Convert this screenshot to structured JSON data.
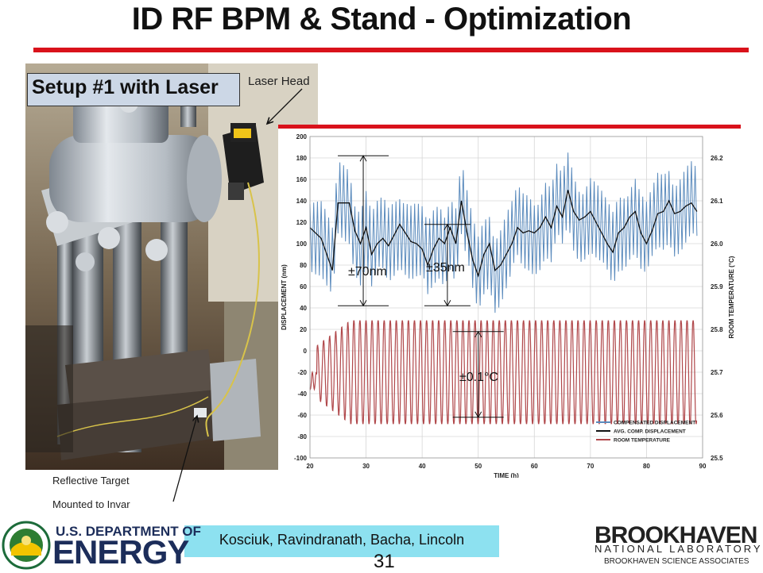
{
  "slide": {
    "title": "ID RF BPM & Stand - Optimization",
    "setup_label": "Setup #1 with Laser",
    "laser_head_label": "Laser Head",
    "target_label_1": "Reflective Target",
    "target_label_2": "Mounted to Invar",
    "authors": "Kosciuk, Ravindranath, Bacha, Lincoln",
    "page_number": "31",
    "accent_color": "#d9121b"
  },
  "footer": {
    "doe_line1": "U.S. DEPARTMENT OF",
    "doe_line2": "ENERGY",
    "bnl_line1": "BROOKHAVEN",
    "bnl_line2": "NATIONAL LABORATORY",
    "bnl_line3": "BROOKHAVEN SCIENCE ASSOCIATES"
  },
  "chart_data": {
    "type": "line",
    "xlabel": "TIME (h)",
    "ylabel": "DISPLACEMENT (nm)",
    "y2label": "ROOM TEMPERATURE (°C)",
    "xlim": [
      20,
      90
    ],
    "ylim": [
      -100,
      200
    ],
    "y2lim": [
      25.5,
      26.25
    ],
    "x_ticks": [
      "20",
      "30",
      "40",
      "50",
      "60",
      "70",
      "80",
      "90"
    ],
    "y_ticks": [
      "-100",
      "-80",
      "-60",
      "-40",
      "-20",
      "0",
      "20",
      "40",
      "60",
      "80",
      "100",
      "120",
      "140",
      "160",
      "180",
      "200"
    ],
    "y2_ticks": [
      "25.5",
      "25.6",
      "25.7",
      "25.8",
      "25.9",
      "26.0",
      "26.1",
      "26.2"
    ],
    "grid": true,
    "legend_position": "bottom-right",
    "series": [
      {
        "name": "COMPENSATED DISPLACEMENT",
        "color": "#5b8bbd",
        "x_range": [
          20,
          89
        ],
        "samples_per_hour": 3,
        "center_nm": "follows AVG. COMP. DISPLACEMENT",
        "amplitude_nm": 40,
        "y_min_nm": 33,
        "y_max_nm": 185
      },
      {
        "name": "AVG. COMP. DISPLACEMENT",
        "color": "#111111",
        "x": [
          20,
          22,
          24,
          25,
          27,
          28,
          29,
          30,
          31,
          32,
          33,
          34,
          35,
          36,
          37,
          38,
          39,
          40,
          41,
          42,
          43,
          44,
          45,
          46,
          47,
          48,
          49,
          50,
          51,
          52,
          53,
          54,
          55,
          56,
          57,
          58,
          59,
          60,
          61,
          62,
          63,
          64,
          65,
          66,
          67,
          68,
          69,
          70,
          71,
          72,
          73,
          74,
          75,
          76,
          77,
          78,
          79,
          80,
          81,
          82,
          83,
          84,
          85,
          86,
          87,
          88,
          89
        ],
        "values": [
          115,
          105,
          75,
          138,
          138,
          112,
          100,
          115,
          90,
          100,
          105,
          98,
          108,
          118,
          110,
          102,
          100,
          95,
          80,
          95,
          105,
          100,
          115,
          100,
          140,
          110,
          85,
          70,
          90,
          100,
          75,
          80,
          90,
          100,
          115,
          110,
          112,
          110,
          115,
          125,
          115,
          135,
          125,
          150,
          130,
          122,
          125,
          130,
          120,
          110,
          100,
          92,
          110,
          115,
          125,
          130,
          110,
          100,
          112,
          128,
          130,
          140,
          128,
          130,
          135,
          138,
          130
        ]
      },
      {
        "name": "ROOM TEMPERATURE",
        "color": "#b0474a",
        "axis": "right",
        "x_range": [
          20,
          89
        ],
        "center_c": 25.7,
        "period_h": 1.08,
        "amplitude_c": [
          0.05,
          0.13
        ],
        "y_min_c": 25.58,
        "y_max_c": 25.82
      }
    ],
    "annotations": [
      "±70nm",
      "±35nm",
      "±0.1°C"
    ]
  }
}
